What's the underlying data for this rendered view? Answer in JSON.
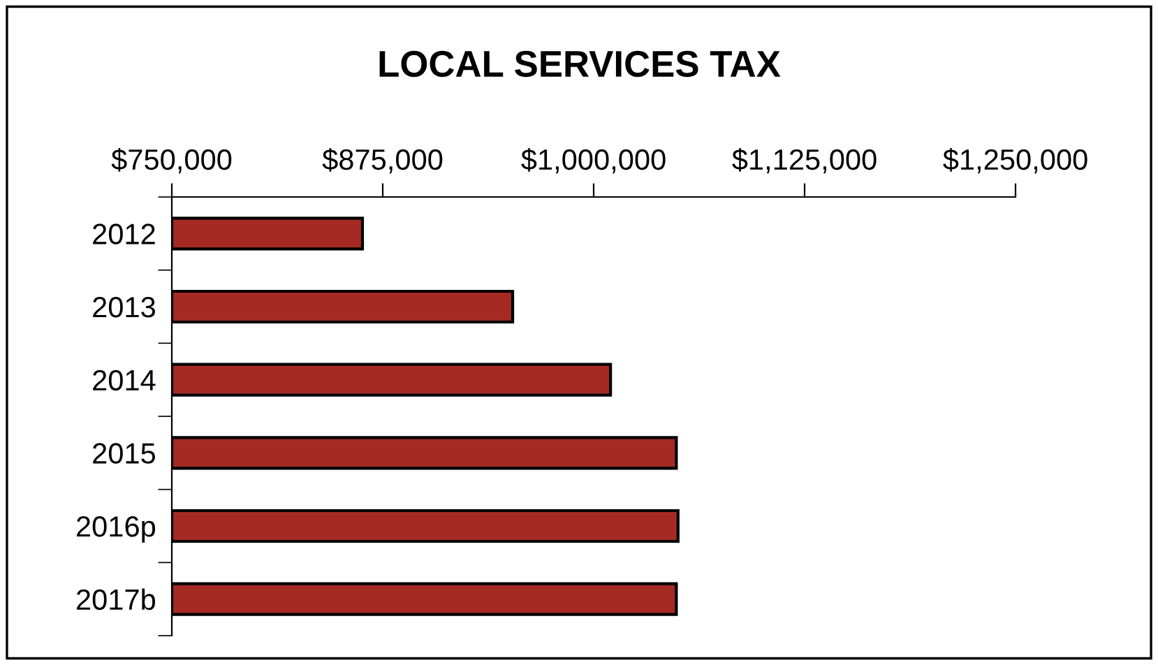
{
  "chart_data": {
    "type": "bar",
    "orientation": "horizontal",
    "title": "LOCAL SERVICES TAX",
    "categories": [
      "2012",
      "2013",
      "2014",
      "2015",
      "2016p",
      "2017b"
    ],
    "series": [
      {
        "color": "#a52a24",
        "values": [
          863000,
          952000,
          1010000,
          1049000,
          1050000,
          1049000
        ]
      }
    ],
    "xlim": [
      750000,
      1250000
    ],
    "xticks": [
      {
        "value": 750000,
        "label": "$750,000"
      },
      {
        "value": 875000,
        "label": "$875,000"
      },
      {
        "value": 1000000,
        "label": "$1,000,000"
      },
      {
        "value": 1125000,
        "label": "$1,125,000"
      },
      {
        "value": 1250000,
        "label": "$1,250,000"
      }
    ],
    "grid": false,
    "legend": false
  }
}
